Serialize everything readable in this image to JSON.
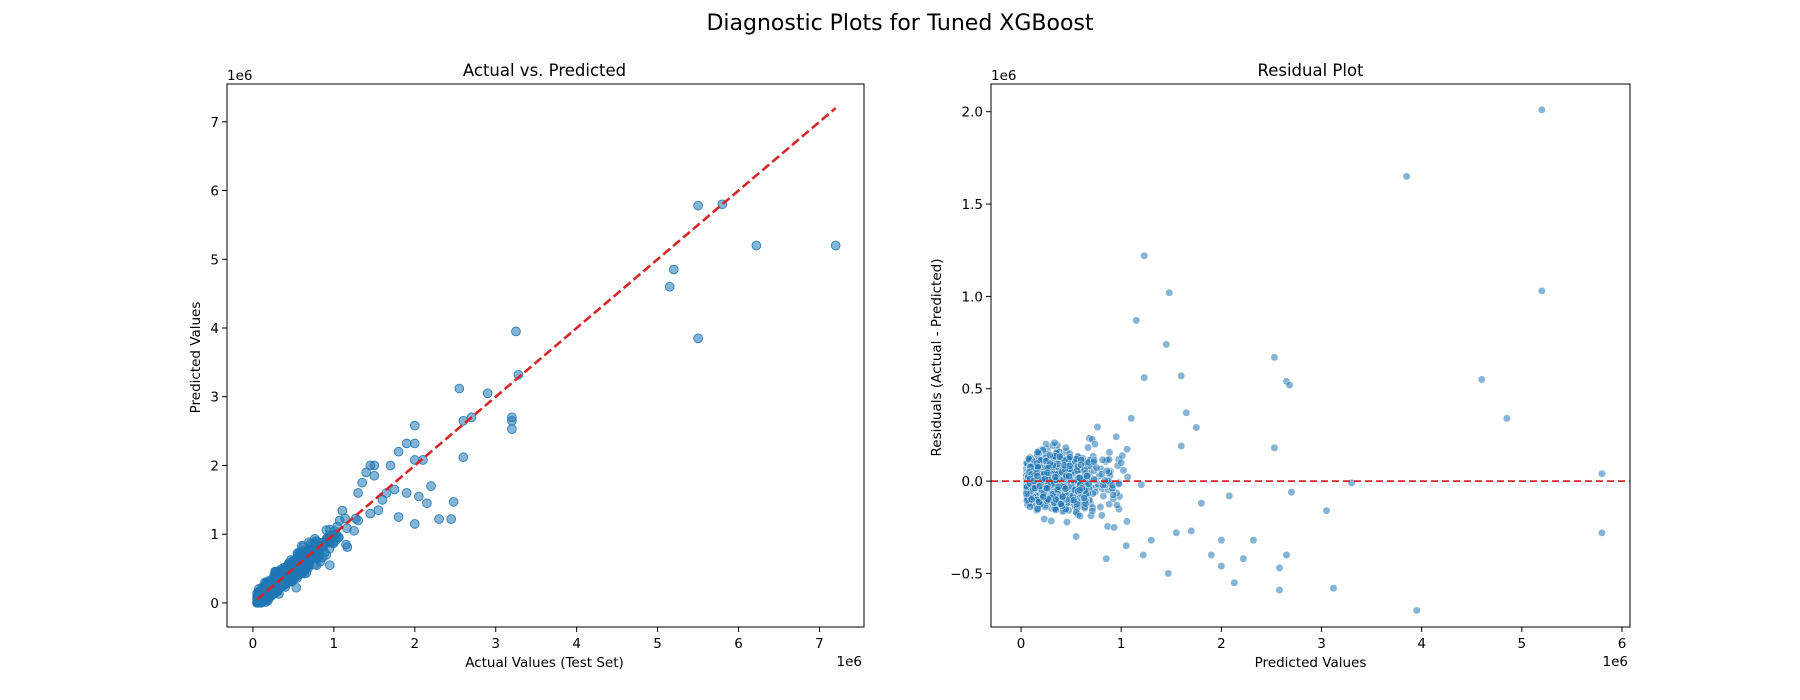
{
  "figure": {
    "suptitle": "Diagnostic Plots for Tuned XGBoost"
  },
  "chart_data": [
    {
      "type": "scatter",
      "title": "Actual vs. Predicted",
      "xlabel": "Actual Values (Test Set)",
      "ylabel": "Predicted Values",
      "x_offset_label": "1e6",
      "y_offset_label": "1e6",
      "xlim": [
        -0.32,
        7.55
      ],
      "ylim": [
        -0.35,
        7.55
      ],
      "x_ticks": [
        0,
        1,
        2,
        3,
        4,
        5,
        6,
        7
      ],
      "y_ticks": [
        0,
        1,
        2,
        3,
        4,
        5,
        6,
        7
      ],
      "grid": false,
      "point_color": "#1f77b4",
      "reference_line": {
        "from": [
          0.05,
          0.05
        ],
        "to": [
          7.2,
          7.2
        ],
        "color": "#d62728",
        "style": "dashed"
      },
      "series": [
        {
          "x": [
            5.5,
            5.8,
            6.22,
            7.2,
            5.5,
            5.2,
            5.15,
            3.25,
            3.28,
            3.2,
            3.2,
            3.2,
            2.9,
            2.7,
            2.55,
            2.6,
            2.6,
            2.48,
            2.3,
            2.45,
            2.0,
            2.0,
            2.0,
            2.1,
            1.9,
            2.2,
            2.15,
            1.8,
            1.7,
            1.65,
            1.5,
            1.45,
            1.4,
            1.5,
            1.35,
            1.3,
            1.8,
            2.0,
            1.6,
            1.55,
            1.45,
            1.3,
            1.25,
            1.15,
            1.05,
            0.95,
            1.9,
            2.05,
            1.75
          ],
          "y": [
            5.78,
            5.8,
            5.2,
            5.2,
            3.85,
            4.85,
            4.6,
            3.95,
            3.32,
            2.7,
            2.65,
            2.53,
            3.05,
            2.7,
            3.12,
            2.65,
            2.12,
            1.47,
            1.22,
            1.22,
            2.58,
            2.32,
            2.08,
            2.08,
            2.32,
            1.7,
            1.45,
            2.2,
            2.0,
            1.6,
            2.0,
            2.0,
            1.9,
            1.85,
            1.75,
            1.6,
            1.25,
            1.15,
            1.5,
            1.35,
            1.3,
            1.2,
            1.05,
            0.85,
            0.95,
            0.55,
            1.6,
            1.55,
            1.65
          ]
        }
      ],
      "dense_cluster": {
        "x_range": [
          0.05,
          1.3
        ],
        "trend_slope": 0.98,
        "noise_sd": 0.09,
        "points": 1100
      }
    },
    {
      "type": "scatter",
      "title": "Residual Plot",
      "xlabel": "Predicted Values",
      "ylabel": "Residuals (Actual - Predicted)",
      "x_offset_label": "1e6",
      "y_offset_label": "1e6",
      "xlim": [
        -0.3,
        6.08
      ],
      "ylim": [
        -0.79,
        2.15
      ],
      "x_ticks": [
        0,
        1,
        2,
        3,
        4,
        5,
        6
      ],
      "y_ticks": [
        -0.5,
        0.0,
        0.5,
        1.0,
        1.5,
        2.0
      ],
      "y_tick_labels": [
        "−0.5",
        "0.0",
        "0.5",
        "1.0",
        "1.5",
        "2.0"
      ],
      "grid": false,
      "point_color": "#1f77b4",
      "reference_line": {
        "y": 0,
        "color": "#d62728",
        "style": "dashed"
      },
      "series": [
        {
          "x": [
            5.2,
            3.85,
            1.23,
            1.48,
            5.2,
            1.15,
            1.45,
            2.53,
            2.65,
            2.68,
            4.6,
            1.6,
            1.23,
            4.85,
            2.53,
            5.8,
            5.8,
            3.3,
            3.05,
            2.7,
            2.32,
            2.58,
            1.47,
            1.22,
            2.08,
            2.0,
            1.9,
            2.0,
            2.13,
            2.22,
            2.65,
            3.12,
            2.58,
            3.95,
            0.85,
            1.05,
            0.55,
            1.3,
            1.55,
            1.7,
            1.75,
            1.65,
            1.6,
            1.8,
            1.2,
            1.0,
            0.95,
            1.1
          ],
          "y": [
            2.01,
            1.65,
            1.22,
            1.02,
            1.03,
            0.87,
            0.74,
            0.67,
            0.54,
            0.52,
            0.55,
            0.57,
            0.56,
            0.34,
            0.18,
            0.04,
            -0.28,
            -0.01,
            -0.16,
            -0.06,
            -0.32,
            -0.59,
            -0.5,
            -0.4,
            -0.08,
            -0.32,
            -0.4,
            -0.46,
            -0.55,
            -0.42,
            -0.4,
            -0.58,
            -0.47,
            -0.7,
            -0.42,
            -0.35,
            -0.3,
            -0.32,
            -0.28,
            -0.27,
            0.29,
            0.37,
            0.19,
            -0.12,
            -0.02,
            0.1,
            0.24,
            0.34
          ]
        }
      ],
      "dense_cluster": {
        "x_range": [
          0.05,
          1.3
        ],
        "noise_sd": 0.09,
        "points": 1100
      }
    }
  ]
}
